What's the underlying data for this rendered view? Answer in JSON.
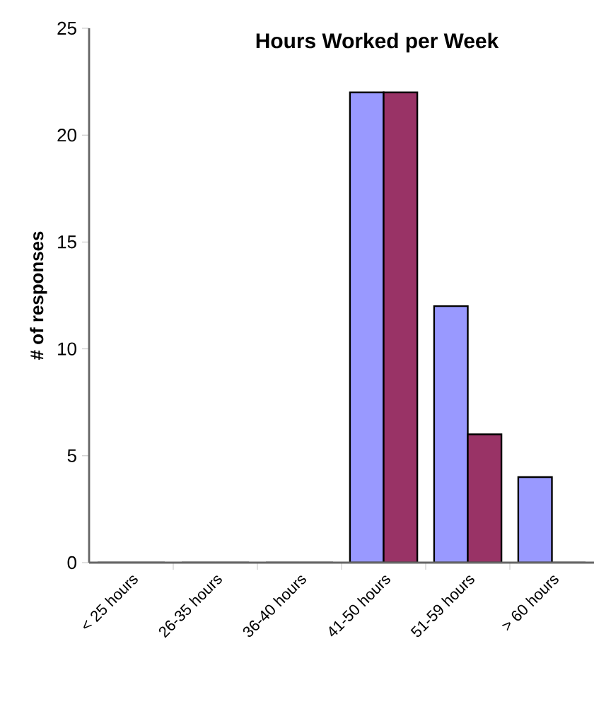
{
  "chart_data": {
    "type": "bar",
    "title": "Hours Worked per Week",
    "ylabel": "# of responses",
    "categories": [
      "< 25 hours",
      "26-35 hours",
      "36-40 hours",
      "41-50 hours",
      "51-59 hours",
      "> 60 hours"
    ],
    "series": [
      {
        "color": "#9999ff",
        "values": [
          0,
          0,
          0,
          22,
          12,
          4
        ]
      },
      {
        "color": "#993366",
        "values": [
          0,
          0,
          0,
          22,
          6,
          0
        ]
      }
    ],
    "ylim": [
      0,
      25
    ],
    "yticks": [
      0,
      5,
      10,
      15,
      20,
      25
    ],
    "grid": false
  }
}
